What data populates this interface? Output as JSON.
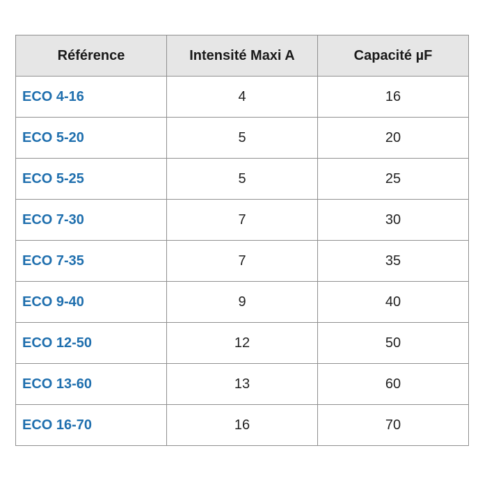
{
  "table": {
    "header": [
      "Référence",
      "Intensité Maxi A",
      "Capacité µF"
    ],
    "rows": [
      [
        "ECO 4-16",
        4,
        16
      ],
      [
        "ECO 5-20",
        5,
        20
      ],
      [
        "ECO 5-25",
        5,
        25
      ],
      [
        "ECO 7-30",
        7,
        30
      ],
      [
        "ECO 7-35",
        7,
        35
      ],
      [
        "ECO 9-40",
        9,
        40
      ],
      [
        "ECO 12-50",
        12,
        50
      ],
      [
        "ECO 13-60",
        13,
        60
      ],
      [
        "ECO 16-70",
        16,
        70
      ]
    ]
  }
}
